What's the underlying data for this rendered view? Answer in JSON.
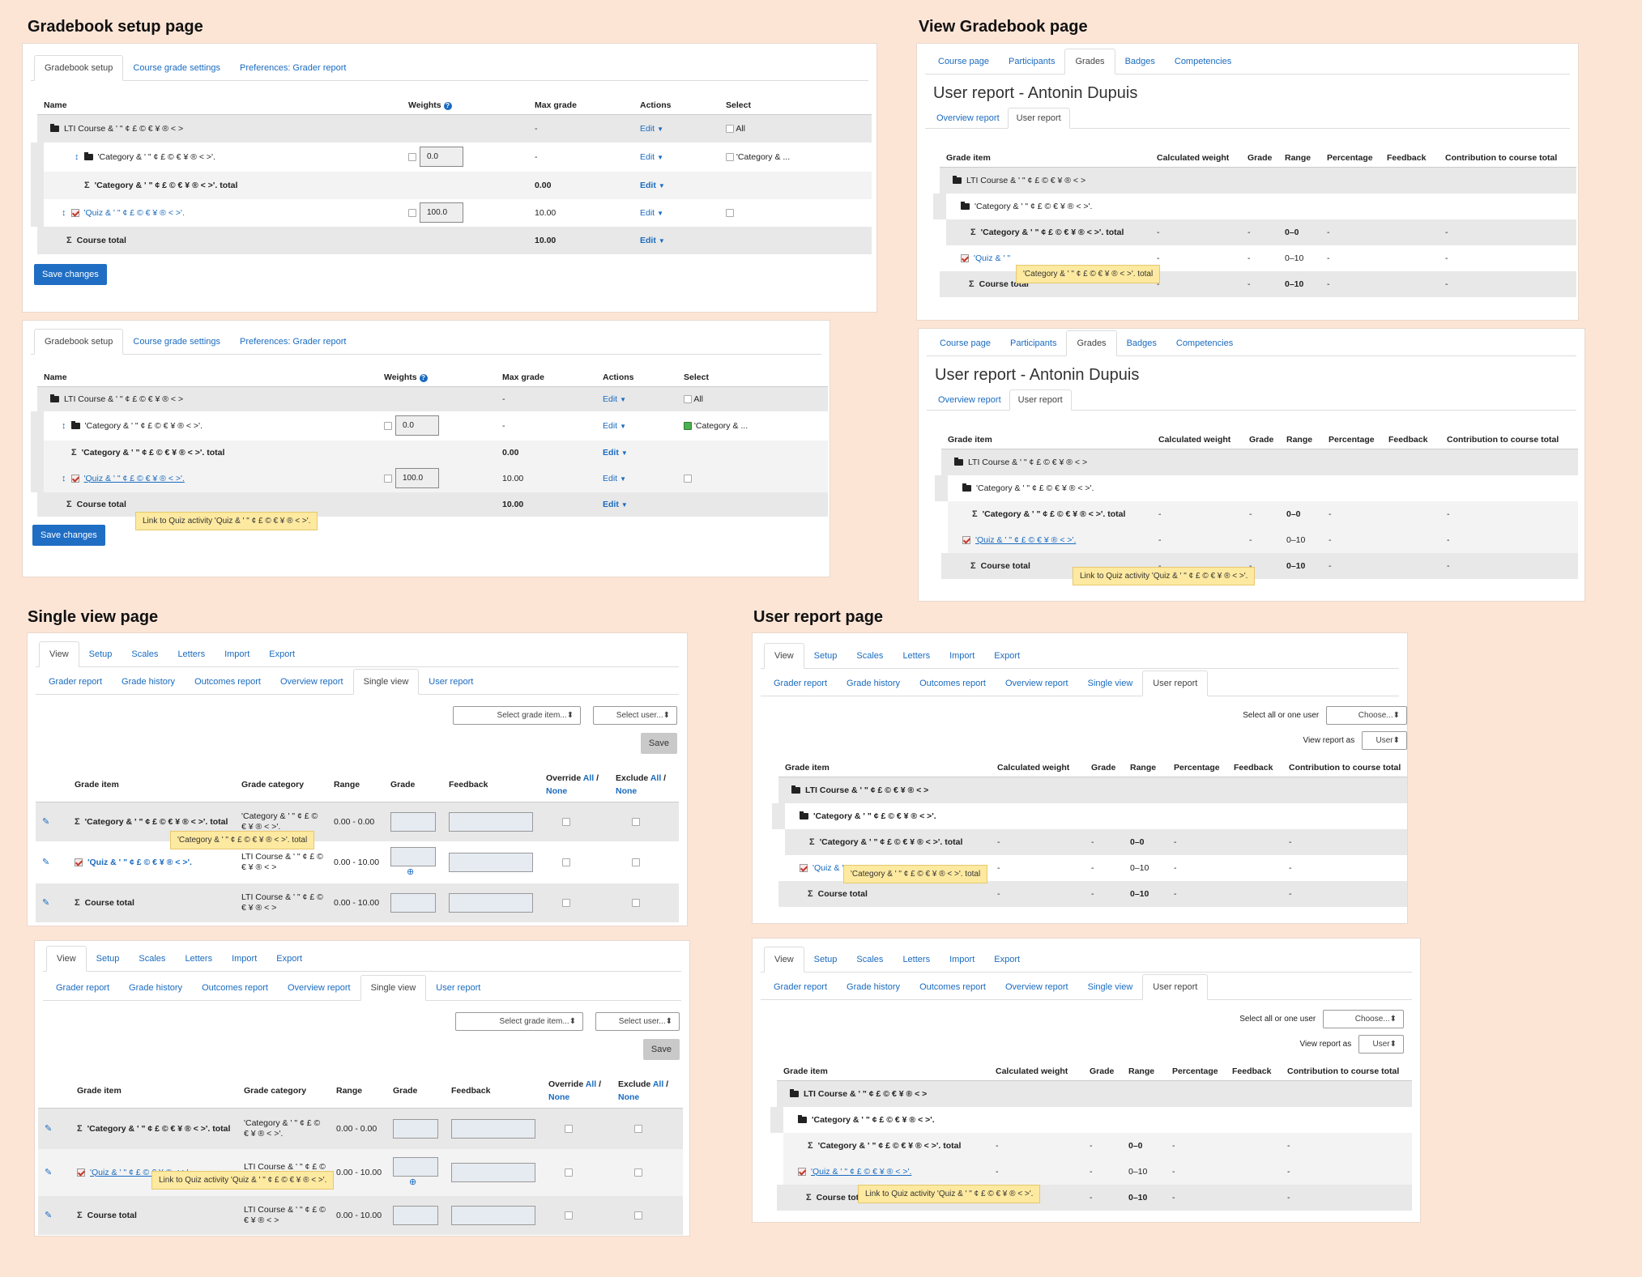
{
  "titles": {
    "setup": "Gradebook setup page",
    "view": "View Gradebook page",
    "single": "Single view page",
    "user": "User report page"
  },
  "setup": {
    "tabs": [
      "Gradebook setup",
      "Course grade settings",
      "Preferences: Grader report"
    ],
    "cols": {
      "name": "Name",
      "weights": "Weights",
      "max": "Max grade",
      "actions": "Actions",
      "select": "Select"
    },
    "course": "LTI Course & ' \" ¢ £ © € ¥ ® < >",
    "category": "'Category & ' \" ¢ £ © € ¥ ® < >'.",
    "cat_total": "'Category & ' \" ¢ £ © € ¥ ® < >'. total",
    "quiz": "'Quiz & ' \" ¢ £ © € ¥ ® < >'.",
    "course_total": "Course total",
    "dash": "-",
    "cat_weight": "0.0",
    "quiz_weight": "100.0",
    "cat_max": "0.00",
    "quiz_max": "10.00",
    "course_max": "10.00",
    "edit": "Edit",
    "all": "All",
    "cat_select": "'Category & ...",
    "save": "Save changes",
    "tip2": "Link to Quiz activity 'Quiz & ' \" ¢ £ © € ¥ ® < >'."
  },
  "view": {
    "tabs": [
      "Course page",
      "Participants",
      "Grades",
      "Badges",
      "Competencies"
    ],
    "heading": "User report - Antonin Dupuis",
    "subtabs": [
      "Overview report",
      "User report"
    ],
    "cols": [
      "Grade item",
      "Calculated weight",
      "Grade",
      "Range",
      "Percentage",
      "Feedback",
      "Contribution to course total"
    ],
    "course": "LTI Course & ' \" ¢ £ © € ¥ ® < >",
    "category": "'Category & ' \" ¢ £ © € ¥ ® < >'.",
    "cat_total": "'Category & ' \" ¢ £ © € ¥ ® < >'. total",
    "quiz_short": "'Quiz & ' \"",
    "quiz": "'Quiz & ' \" ¢ £ © € ¥ ® < >'.",
    "course_total": "Course total",
    "dash": "-",
    "range_cat": "0–0",
    "range_quiz": "0–10",
    "range_total": "0–10",
    "tip1": "'Category & ' \" ¢ £ © € ¥ ® < >'. total",
    "tip2": "Link to Quiz activity 'Quiz & ' \" ¢ £ © € ¥ ® < >'."
  },
  "single": {
    "tabs": [
      "View",
      "Setup",
      "Scales",
      "Letters",
      "Import",
      "Export"
    ],
    "subtabs": [
      "Grader report",
      "Grade history",
      "Outcomes report",
      "Overview report",
      "Single view",
      "User report"
    ],
    "select_item": "Select grade item...",
    "select_user": "Select user...",
    "save": "Save",
    "cols": {
      "item": "Grade item",
      "cat": "Grade category",
      "range": "Range",
      "grade": "Grade",
      "feedback": "Feedback",
      "override": "Override",
      "exclude": "Exclude",
      "all": "All",
      "slash": "/",
      "none": "None"
    },
    "cat_total": "'Category & ' \" ¢ £ © € ¥ ® < >'. total",
    "cat_cat": "'Category & ' \" ¢ £ ©",
    "cat_cat2": "€ ¥ ® < >'.",
    "quiz": "'Quiz & ' \" ¢ £ © € ¥ ® < >'.",
    "lti": "LTI Course & ' \" ¢ £ ©",
    "lti2": "€ ¥ ® < >",
    "course_total": "Course total",
    "range_cat": "0.00 - 0.00",
    "range_quiz": "0.00 - 10.00",
    "range_total": "0.00 - 10.00",
    "tip1": "'Category & ' \" ¢ £ © € ¥ ® < >'. total",
    "tip2": "Link to Quiz activity 'Quiz & ' \" ¢ £ © € ¥ ® < >'."
  },
  "user": {
    "tabs": [
      "View",
      "Setup",
      "Scales",
      "Letters",
      "Import",
      "Export"
    ],
    "subtabs": [
      "Grader report",
      "Grade history",
      "Outcomes report",
      "Overview report",
      "Single view",
      "User report"
    ],
    "select_label": "Select all or one user",
    "choose": "Choose...",
    "view_as": "View report as",
    "user": "User",
    "cols": [
      "Grade item",
      "Calculated weight",
      "Grade",
      "Range",
      "Percentage",
      "Feedback",
      "Contribution to course total"
    ],
    "course": "LTI Course & ' \" ¢ £ © € ¥ ® < >",
    "category": "'Category & ' \" ¢ £ © € ¥ ® < >'.",
    "cat_total": "'Category & ' \" ¢ £ © € ¥ ® < >'. total",
    "quiz_short": "'Quiz & '",
    "quiz": "'Quiz & ' \" ¢ £ © € ¥ ® < >'.",
    "course_total": "Course total",
    "dash": "-",
    "range_cat": "0–0",
    "range_quiz": "0–10",
    "range_total": "0–10",
    "tip1": "'Category & ' \" ¢ £ © € ¥ ® < >'. total",
    "tip2": "Link to Quiz activity 'Quiz & ' \" ¢ £ © € ¥ ® < >'."
  }
}
